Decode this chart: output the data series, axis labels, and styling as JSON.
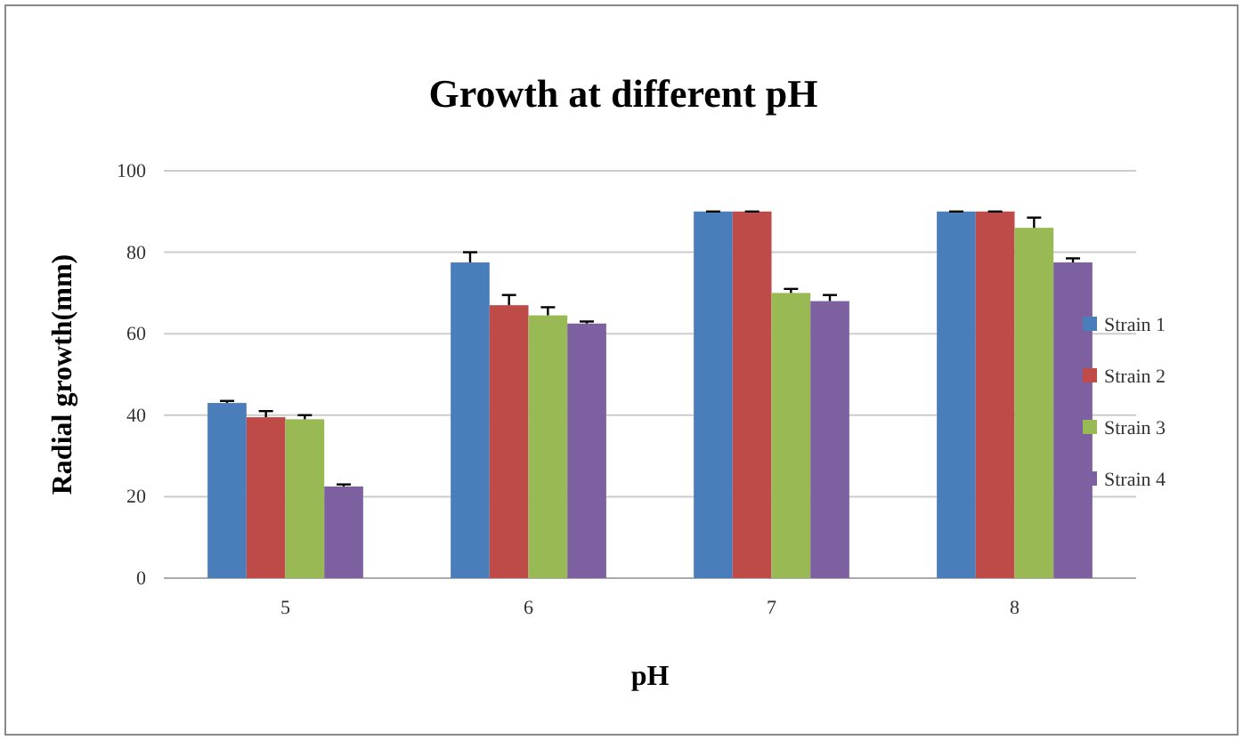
{
  "chart_data": {
    "type": "bar",
    "title": "Growth at different pH",
    "xlabel": "pH",
    "ylabel": "Radial growth(mm)",
    "categories": [
      "5",
      "6",
      "7",
      "8"
    ],
    "series": [
      {
        "name": "Strain 1",
        "color": "#4a7ebb",
        "values": [
          43,
          77.5,
          90,
          90
        ],
        "errors": [
          0.5,
          2.5,
          0,
          0
        ]
      },
      {
        "name": "Strain 2",
        "color": "#be4b48",
        "values": [
          39.5,
          67,
          90,
          90
        ],
        "errors": [
          1.5,
          2.5,
          0,
          0
        ]
      },
      {
        "name": "Strain 3",
        "color": "#98b954",
        "values": [
          39,
          64.5,
          70,
          86
        ],
        "errors": [
          1,
          2,
          1,
          2.5
        ]
      },
      {
        "name": "Strain 4",
        "color": "#7d60a0",
        "values": [
          22.5,
          62.5,
          68,
          77.5
        ],
        "errors": [
          0.5,
          0.5,
          1.5,
          1
        ]
      }
    ],
    "ylim": [
      0,
      100
    ],
    "yticks": [
      0,
      20,
      40,
      60,
      80,
      100
    ],
    "grid": "y",
    "legend": "right"
  }
}
